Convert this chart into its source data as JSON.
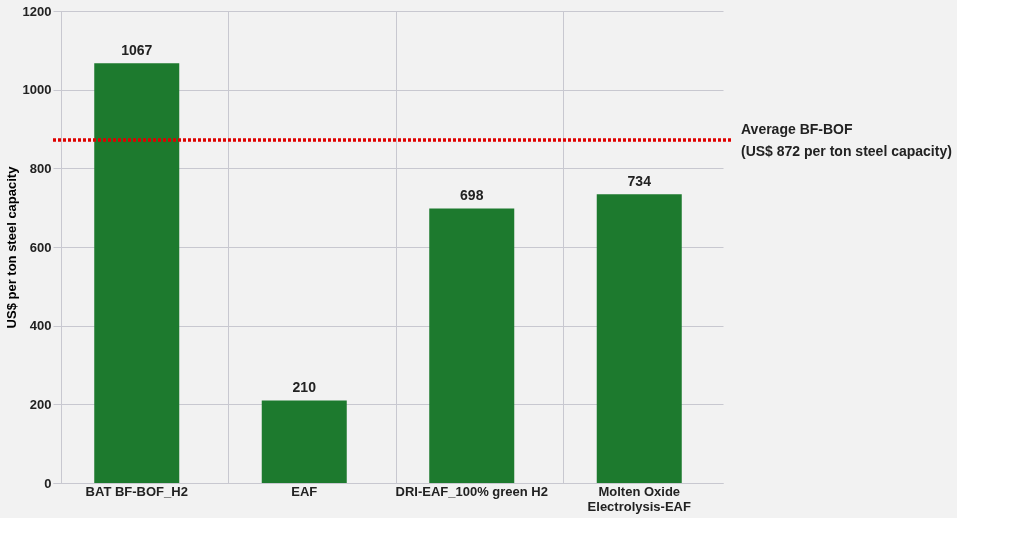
{
  "chart_data": {
    "type": "bar",
    "categories": [
      "BAT BF-BOF_H2",
      "EAF",
      "DRI-EAF_100% green H2",
      "Molten Oxide Electrolysis-EAF"
    ],
    "values": [
      1067,
      210,
      698,
      734
    ],
    "color": "#1d7a2e",
    "ylabel": "US$ per ton steel capacity",
    "ylim": [
      0,
      1200
    ],
    "yticks": [
      0,
      200,
      400,
      600,
      800,
      1000,
      1200
    ],
    "grid": true,
    "data_labels": true,
    "ref_lines": [
      {
        "axis": "y",
        "value": 872,
        "label": "Average BF-BOF\n(US$ 872 per ton steel capacity)",
        "color": "#e00000",
        "line_style": "dotted"
      }
    ]
  }
}
